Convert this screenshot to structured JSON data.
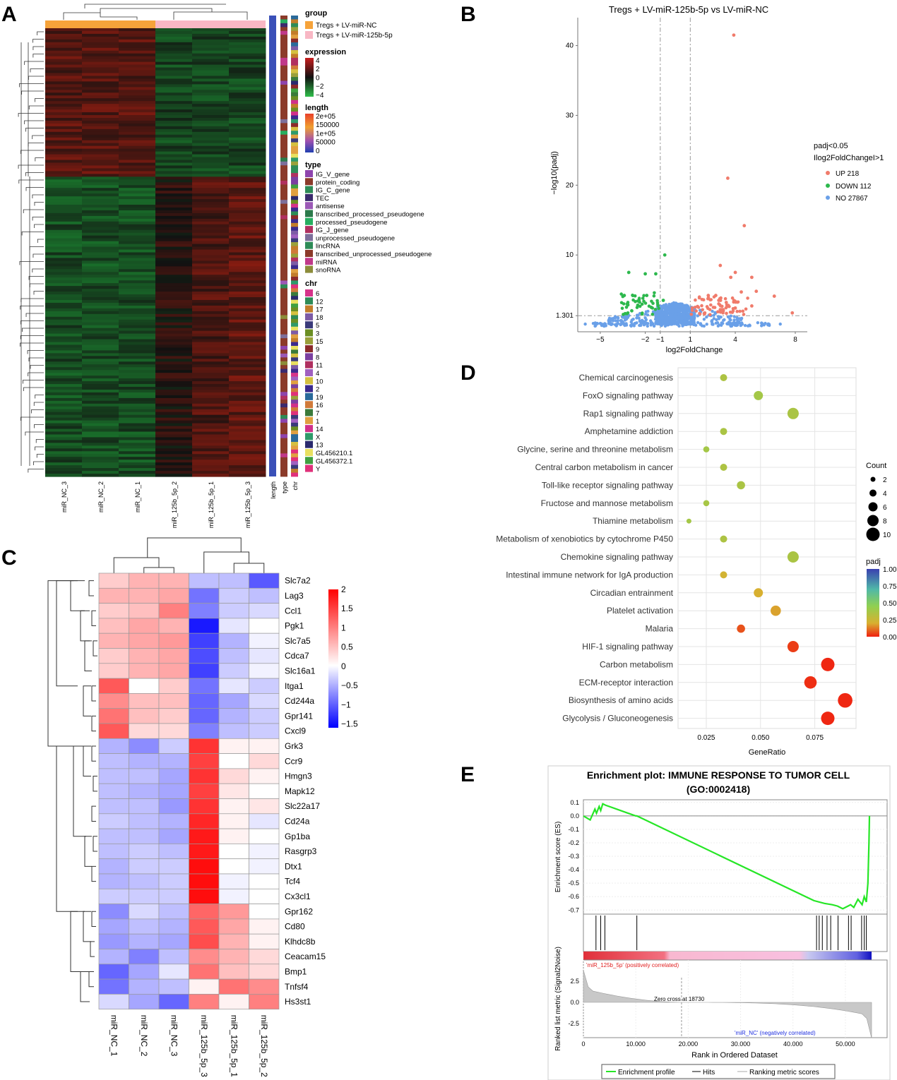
{
  "panels": {
    "A": "A",
    "B": "B",
    "C": "C",
    "D": "D",
    "E": "E"
  },
  "colors": {
    "up": "#f07b6b",
    "down": "#2db84d",
    "no": "#6aa0e8",
    "nc": "#f6a33a",
    "mir": "#f8b7c4"
  },
  "chart_data": [
    {
      "panel": "A",
      "type": "heatmap",
      "columns": [
        "miR_NC_3",
        "miR_NC_2",
        "miR_NC_1",
        "miR_125b_5p_2",
        "miR_125b_5p_1",
        "miR_125b_5p_3"
      ],
      "annotation_columns": [
        "length",
        "type",
        "chr"
      ],
      "legends": {
        "group": {
          "title": "group",
          "items": [
            "Tregs + LV-miR-NC",
            "Tregs + LV-miR-125b-5p"
          ]
        },
        "expression": {
          "title": "expression",
          "ticks": [
            "4",
            "2",
            "0",
            "−2",
            "−4"
          ]
        },
        "length": {
          "title": "length",
          "ticks": [
            "2e+05",
            "150000",
            "1e+05",
            "50000",
            "0"
          ]
        },
        "type": {
          "title": "type",
          "items": [
            "IG_V_gene",
            "protein_coding",
            "IG_C_gene",
            "TEC",
            "antisense",
            "transcribed_processed_pseudogene",
            "processed_pseudogene",
            "IG_J_gene",
            "unprocessed_pseudogene",
            "lincRNA",
            "transcribed_unprocessed_pseudogene",
            "miRNA",
            "snoRNA"
          ],
          "colors": [
            "#8e44ad",
            "#8b3a2a",
            "#2e8b57",
            "#3b2a6e",
            "#9b59b6",
            "#2c7a4b",
            "#27ae60",
            "#b03060",
            "#7d6f9b",
            "#2e8b57",
            "#8b3a2a",
            "#c0398a",
            "#8c8c3a"
          ]
        },
        "chr": {
          "title": "chr",
          "items": [
            "6",
            "12",
            "17",
            "18",
            "5",
            "3",
            "15",
            "9",
            "8",
            "11",
            "4",
            "10",
            "2",
            "19",
            "16",
            "7",
            "1",
            "14",
            "X",
            "13",
            "GL456210.1",
            "GL456372.1",
            "Y"
          ],
          "colors": [
            "#d6338a",
            "#2e8b57",
            "#c27c2a",
            "#7d5ba6",
            "#3a3a7a",
            "#6b8e23",
            "#9aa03a",
            "#8b2a2a",
            "#7b3fa0",
            "#b03060",
            "#a060c0",
            "#d4c040",
            "#3b2a8e",
            "#2a6a9a",
            "#d07a3a",
            "#3a7a3a",
            "#e0a040",
            "#d0308a",
            "#2e9a6a",
            "#2a2a6e",
            "#e8e060",
            "#40a040",
            "#e0307a"
          ]
        }
      }
    },
    {
      "panel": "B",
      "type": "scatter",
      "title": "Tregs + LV-miR-125b-5p vs LV-miR-NC",
      "xlabel": "log2FoldChange",
      "ylabel": "−log10(padj)",
      "xticks": [
        "−5",
        "−2",
        "−1",
        "1",
        "4",
        "8"
      ],
      "yticks": [
        "1.301",
        "10",
        "20",
        "30",
        "40"
      ],
      "xlim": [
        -6.5,
        8.8
      ],
      "ylim": [
        -1,
        44
      ],
      "threshold_lines": {
        "x": [
          -1,
          1
        ],
        "y": 1.301
      },
      "legend_title": [
        "padj<0.05",
        "Ilog2FoldChangeI>1"
      ],
      "legend_items": [
        "UP 218",
        "DOWN 112",
        "NO 27867"
      ],
      "up_points": [
        [
          3.9,
          41.5
        ],
        [
          3.5,
          21
        ],
        [
          4.6,
          14.2
        ],
        [
          3.0,
          8.5
        ],
        [
          4.0,
          7.5
        ],
        [
          3.7,
          6.8
        ],
        [
          5.1,
          6.8
        ],
        [
          6.6,
          4.1
        ],
        [
          7.8,
          1.7
        ],
        [
          2.7,
          4.2
        ],
        [
          2.9,
          3.5
        ],
        [
          3.4,
          3.2
        ],
        [
          4.4,
          4.7
        ],
        [
          5.4,
          4.8
        ],
        [
          4.0,
          2.4
        ],
        [
          5.1,
          2.7
        ],
        [
          2.2,
          4.2
        ],
        [
          3.2,
          2.0
        ]
      ],
      "down_points": [
        [
          -0.7,
          10
        ],
        [
          -3.1,
          7.5
        ],
        [
          -2.0,
          7.3
        ],
        [
          -1.3,
          7.3
        ],
        [
          -3.4,
          4.2
        ],
        [
          -2.5,
          2.8
        ],
        [
          -1.6,
          2.5
        ],
        [
          -2.9,
          2.0
        ],
        [
          -0.8,
          3.5
        ],
        [
          -1.9,
          4.2
        ]
      ],
      "no_points": [
        [
          -5.0,
          0.2
        ],
        [
          -4.2,
          0.1
        ],
        [
          -3.5,
          0.4
        ],
        [
          -2.8,
          0.8
        ],
        [
          -2.0,
          1.0
        ],
        [
          6.0,
          0.2
        ],
        [
          7.0,
          0.1
        ],
        [
          5.5,
          0.3
        ],
        [
          -6.0,
          0.1
        ]
      ]
    },
    {
      "panel": "C",
      "type": "heatmap",
      "columns": [
        "miR_NC_1",
        "miR_NC_2",
        "miR_NC_3",
        "miR_125b_5p_3",
        "miR_125b_5p_1",
        "miR_125b_5p_2"
      ],
      "rows": [
        "Slc7a2",
        "Lag3",
        "Ccl1",
        "Pgk1",
        "Slc7a5",
        "Cdca7",
        "Slc16a1",
        "Itga1",
        "Cd244a",
        "Gpr141",
        "Cxcl9",
        "Grk3",
        "Ccr9",
        "Hmgn3",
        "Mapk12",
        "Slc22a17",
        "Cd24a",
        "Gp1ba",
        "Rasgrp3",
        "Dtx1",
        "Tcf4",
        "Cx3cl1",
        "Gpr162",
        "Cd80",
        "Klhdc8b",
        "Ceacam15",
        "Bmp1",
        "Tnfsf4",
        "Hs3st1"
      ],
      "values": [
        [
          0.4,
          0.6,
          0.6,
          -0.5,
          -0.5,
          -1.3
        ],
        [
          0.6,
          0.6,
          0.7,
          -1.1,
          -0.4,
          -0.5
        ],
        [
          0.4,
          0.5,
          1.0,
          -1.0,
          -0.4,
          -0.3
        ],
        [
          0.5,
          0.7,
          0.6,
          -1.8,
          -0.2,
          0.0
        ],
        [
          0.6,
          0.7,
          0.8,
          -1.5,
          -0.6,
          -0.1
        ],
        [
          0.4,
          0.6,
          0.7,
          -1.4,
          -0.5,
          -0.2
        ],
        [
          0.4,
          0.6,
          0.7,
          -1.5,
          -0.4,
          -0.1
        ],
        [
          1.3,
          0.0,
          0.4,
          -1.1,
          -0.2,
          -0.4
        ],
        [
          0.9,
          0.5,
          0.5,
          -1.2,
          -0.7,
          -0.3
        ],
        [
          1.1,
          0.5,
          0.4,
          -1.2,
          -0.6,
          -0.4
        ],
        [
          1.3,
          0.3,
          0.3,
          -1.0,
          -0.5,
          -0.4
        ],
        [
          -0.6,
          -0.9,
          -0.4,
          1.6,
          0.1,
          0.1
        ],
        [
          -0.5,
          -0.6,
          -0.6,
          1.5,
          0.0,
          0.3
        ],
        [
          -0.5,
          -0.5,
          -0.7,
          1.6,
          0.3,
          0.1
        ],
        [
          -0.5,
          -0.6,
          -0.7,
          1.5,
          0.2,
          0.0
        ],
        [
          -0.5,
          -0.5,
          -0.8,
          1.6,
          0.1,
          0.2
        ],
        [
          -0.4,
          -0.5,
          -0.6,
          1.7,
          0.1,
          -0.2
        ],
        [
          -0.5,
          -0.5,
          -0.7,
          1.8,
          0.1,
          0.0
        ],
        [
          -0.5,
          -0.4,
          -0.5,
          1.8,
          0.0,
          -0.1
        ],
        [
          -0.6,
          -0.4,
          -0.4,
          1.9,
          0.0,
          -0.1
        ],
        [
          -0.6,
          -0.5,
          -0.4,
          1.9,
          -0.1,
          0.0
        ],
        [
          -0.4,
          -0.4,
          -0.4,
          1.9,
          -0.1,
          0.0
        ],
        [
          -0.9,
          -0.3,
          -0.5,
          1.2,
          0.8,
          0.0
        ],
        [
          -0.7,
          -0.5,
          -0.6,
          1.3,
          0.7,
          0.1
        ],
        [
          -0.8,
          -0.6,
          -0.7,
          1.4,
          0.6,
          0.1
        ],
        [
          -0.6,
          -1.0,
          -0.5,
          0.9,
          0.6,
          0.3
        ],
        [
          -1.2,
          -0.7,
          -0.2,
          1.1,
          0.5,
          0.3
        ],
        [
          -1.1,
          -0.6,
          -0.5,
          0.1,
          1.1,
          0.9
        ],
        [
          -0.3,
          -0.7,
          -1.2,
          1.0,
          0.1,
          1.0
        ]
      ],
      "legend_ticks": [
        "2",
        "1.5",
        "1",
        "0.5",
        "0",
        "−0.5",
        "−1",
        "−1.5"
      ]
    },
    {
      "panel": "D",
      "type": "scatter",
      "xlabel": "GeneRatio",
      "xticks": [
        "0.025",
        "0.050",
        "0.075"
      ],
      "categories": [
        "Chemical carcinogenesis",
        "FoxO signaling pathway",
        "Rap1 signaling pathway",
        "Amphetamine addiction",
        "Glycine, serine and threonine metabolism",
        "Central carbon metabolism in cancer",
        "Toll-like receptor signaling pathway",
        "Fructose and mannose metabolism",
        "Thiamine metabolism",
        "Metabolism of xenobiotics by cytochrome P450",
        "Chemokine signaling pathway",
        "Intestinal immune network for IgA production",
        "Circadian entrainment",
        "Platelet activation",
        "Malaria",
        "HIF-1 signaling pathway",
        "Carbon metabolism",
        "ECM-receptor interaction",
        "Biosynthesis of amino acids",
        "Glycolysis / Gluconeogenesis"
      ],
      "gene_ratio": [
        0.033,
        0.049,
        0.065,
        0.033,
        0.025,
        0.033,
        0.041,
        0.025,
        0.017,
        0.033,
        0.065,
        0.033,
        0.049,
        0.057,
        0.041,
        0.065,
        0.081,
        0.073,
        0.089,
        0.081
      ],
      "count": [
        4,
        6,
        8,
        4,
        3,
        4,
        5,
        3,
        2,
        4,
        8,
        4,
        6,
        7,
        5,
        8,
        10,
        9,
        11,
        10
      ],
      "padj": [
        0.35,
        0.38,
        0.36,
        0.36,
        0.38,
        0.35,
        0.36,
        0.37,
        0.38,
        0.35,
        0.36,
        0.22,
        0.2,
        0.18,
        0.07,
        0.04,
        0.01,
        0.02,
        0.01,
        0.01
      ],
      "size_legend": {
        "title": "Count",
        "items": [
          "2",
          "4",
          "6",
          "8",
          "10"
        ]
      },
      "color_legend": {
        "title": "padj",
        "ticks": [
          "1.00",
          "0.75",
          "0.50",
          "0.25",
          "0.00"
        ]
      }
    },
    {
      "panel": "E",
      "type": "line",
      "title": "Enrichment plot: IMMUNE RESPONSE TO TUMOR CELL",
      "subtitle": "(GO:0002418)",
      "ylabel_top": "Enrichment score (ES)",
      "ylabel_bottom": "Ranked list metric (Signal2Noise)",
      "xlabel": "Rank in Ordered Dataset",
      "yticks_es": [
        "0.1",
        "0.0",
        "-0.1",
        "-0.2",
        "-0.3",
        "-0.4",
        "-0.5",
        "-0.6",
        "-0.7"
      ],
      "yticks_metric": [
        "2.5",
        "0.0",
        "-2.5"
      ],
      "xticks": [
        "0",
        "10.000",
        "20.000",
        "30.000",
        "40.000",
        "50.000"
      ],
      "xlim": [
        0,
        55000
      ],
      "es_ylim": [
        -0.73,
        0.12
      ],
      "es_x": [
        0,
        1300,
        2200,
        2500,
        3000,
        3300,
        3700,
        4200,
        10000,
        10200,
        44000,
        46000,
        47500,
        48500,
        49500,
        50500,
        51000,
        51600,
        52400,
        53200,
        53600,
        54000,
        54300,
        54500,
        54600
      ],
      "es_y": [
        0.0,
        -0.03,
        0.05,
        0.02,
        0.07,
        0.04,
        0.09,
        0.08,
        0.0,
        0.0,
        -0.63,
        -0.65,
        -0.66,
        -0.67,
        -0.69,
        -0.67,
        -0.66,
        -0.68,
        -0.62,
        -0.66,
        -0.6,
        -0.64,
        -0.5,
        -0.2,
        0.0
      ],
      "hits": [
        2400,
        3300,
        4100,
        10200,
        44500,
        45000,
        45600,
        46500,
        47200,
        48600,
        50600,
        51100,
        53100,
        53600,
        54000
      ],
      "zero_cross": "Zero cross at 18730",
      "pos_label": "'miR_125b_5p' (positively correlated)",
      "neg_label": "'miR_NC' (negatively correlated)",
      "legend_items": [
        "Enrichment profile",
        "Hits",
        "Ranking metric scores"
      ]
    }
  ]
}
